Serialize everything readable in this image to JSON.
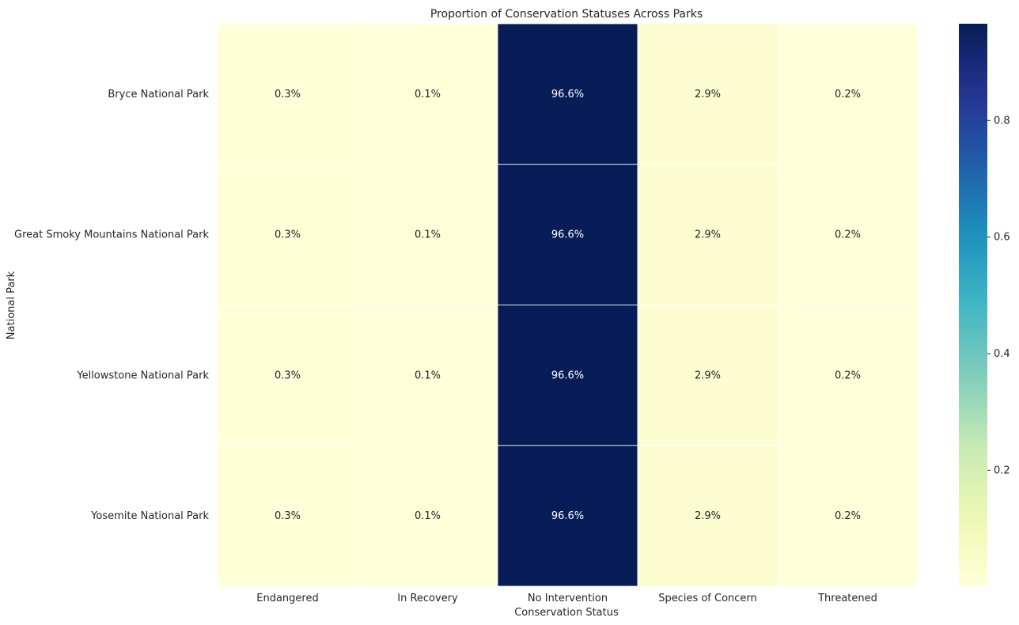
{
  "chart_data": {
    "type": "heatmap",
    "title": "Proportion of Conservation Statuses Across Parks",
    "xlabel": "Conservation Status",
    "ylabel": "National Park",
    "x_categories": [
      "Endangered",
      "In Recovery",
      "No Intervention",
      "Species of Concern",
      "Threatened"
    ],
    "y_categories": [
      "Bryce National Park",
      "Great Smoky Mountains National Park",
      "Yellowstone National Park",
      "Yosemite National Park"
    ],
    "values": [
      [
        0.003,
        0.001,
        0.966,
        0.029,
        0.002
      ],
      [
        0.003,
        0.001,
        0.966,
        0.029,
        0.002
      ],
      [
        0.003,
        0.001,
        0.966,
        0.029,
        0.002
      ],
      [
        0.003,
        0.001,
        0.966,
        0.029,
        0.002
      ]
    ],
    "cell_labels": [
      [
        "0.3%",
        "0.1%",
        "96.6%",
        "2.9%",
        "0.2%"
      ],
      [
        "0.3%",
        "0.1%",
        "96.6%",
        "2.9%",
        "0.2%"
      ],
      [
        "0.3%",
        "0.1%",
        "96.6%",
        "2.9%",
        "0.2%"
      ],
      [
        "0.3%",
        "0.1%",
        "96.6%",
        "2.9%",
        "0.2%"
      ]
    ],
    "colormap": "YlGnBu",
    "color_range": [
      0.001,
      0.966
    ],
    "colorbar_ticks": [
      0.2,
      0.4,
      0.6,
      0.8
    ],
    "colorbar_tick_labels": [
      "0.2",
      "0.4",
      "0.6",
      "0.8"
    ],
    "colorbar_placement": "right",
    "grid": false
  }
}
